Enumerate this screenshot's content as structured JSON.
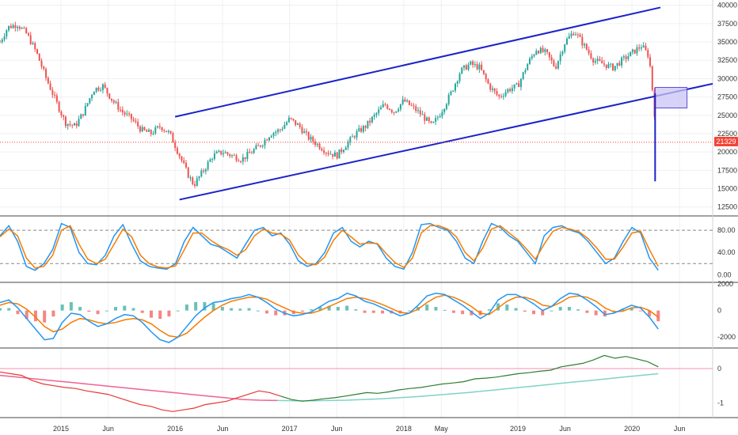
{
  "colors": {
    "up": "#26a69a",
    "down": "#ef5350",
    "channel": "#1b23c8",
    "stoch_k": "#2196f3",
    "stoch_d": "#f57c00",
    "macd": "#2196f3",
    "signal": "#f57c00",
    "hist_pos": "#26a69a",
    "hist_neg": "#ef5350",
    "ratio_up": "#2e7d32",
    "ratio_down": "#e53935",
    "ma_up": "#7fd3c3",
    "ma_down": "#f06292",
    "price_line": "#f44336",
    "price_badge": "#f44336",
    "box_fill": "#c9c4f5",
    "box_stroke": "#5c4ad3"
  },
  "current_price_label": "21329",
  "chart_data": [
    {
      "type": "candlestick",
      "panel": "price",
      "x_axis_labels": [
        "2015",
        "Jun",
        "2016",
        "Jun",
        "2017",
        "Jun",
        "2018",
        "May",
        "2019",
        "Jun",
        "2020",
        "Jun"
      ],
      "x_axis_dates": [
        "2015-01-01",
        "2015-06-01",
        "2016-01-01",
        "2016-06-01",
        "2017-01-01",
        "2017-06-01",
        "2018-01-01",
        "2018-05-01",
        "2019-01-01",
        "2019-06-01",
        "2020-01-01",
        "2020-06-01"
      ],
      "x_range": [
        "2014-06-20",
        "2020-09-15"
      ],
      "y_ticks": [
        "40000",
        "37500",
        "35000",
        "32500",
        "30000",
        "27500",
        "25000",
        "22500",
        "20000",
        "17500",
        "15000",
        "12500"
      ],
      "y_range": [
        11500,
        40500
      ],
      "current_price": 21329,
      "closes_approx": [
        [
          "2014-06-20",
          35000
        ],
        [
          "2014-07-15",
          37000
        ],
        [
          "2014-08-15",
          37400
        ],
        [
          "2014-09-15",
          36000
        ],
        [
          "2014-10-15",
          33500
        ],
        [
          "2014-11-15",
          30000
        ],
        [
          "2014-12-15",
          27000
        ],
        [
          "2015-01-15",
          24000
        ],
        [
          "2015-02-15",
          23500
        ],
        [
          "2015-03-15",
          25500
        ],
        [
          "2015-04-15",
          28500
        ],
        [
          "2015-05-15",
          29000
        ],
        [
          "2015-06-15",
          27000
        ],
        [
          "2015-07-15",
          25500
        ],
        [
          "2015-08-15",
          24500
        ],
        [
          "2015-09-15",
          23000
        ],
        [
          "2015-10-15",
          22500
        ],
        [
          "2015-11-15",
          23500
        ],
        [
          "2015-12-15",
          22500
        ],
        [
          "2016-01-10",
          20000
        ],
        [
          "2016-02-10",
          17000
        ],
        [
          "2016-03-01",
          15500
        ],
        [
          "2016-04-01",
          17500
        ],
        [
          "2016-05-01",
          19500
        ],
        [
          "2016-06-01",
          20000
        ],
        [
          "2016-07-01",
          19500
        ],
        [
          "2016-08-01",
          19000
        ],
        [
          "2016-09-01",
          20000
        ],
        [
          "2016-10-01",
          21000
        ],
        [
          "2016-11-01",
          22500
        ],
        [
          "2016-12-01",
          23000
        ],
        [
          "2017-01-01",
          24500
        ],
        [
          "2017-02-01",
          23500
        ],
        [
          "2017-03-01",
          22000
        ],
        [
          "2017-04-01",
          21000
        ],
        [
          "2017-05-01",
          20000
        ],
        [
          "2017-06-01",
          19500
        ],
        [
          "2017-07-01",
          21000
        ],
        [
          "2017-08-01",
          22500
        ],
        [
          "2017-09-01",
          23500
        ],
        [
          "2017-10-01",
          25000
        ],
        [
          "2017-11-01",
          26500
        ],
        [
          "2017-12-01",
          25500
        ],
        [
          "2018-01-01",
          27000
        ],
        [
          "2018-02-01",
          26000
        ],
        [
          "2018-03-01",
          25000
        ],
        [
          "2018-04-01",
          23500
        ],
        [
          "2018-05-01",
          25500
        ],
        [
          "2018-06-01",
          28000
        ],
        [
          "2018-07-01",
          31000
        ],
        [
          "2018-08-01",
          32000
        ],
        [
          "2018-09-01",
          31500
        ],
        [
          "2018-10-01",
          29000
        ],
        [
          "2018-11-01",
          27500
        ],
        [
          "2018-12-01",
          28500
        ],
        [
          "2019-01-01",
          29000
        ],
        [
          "2019-02-01",
          32000
        ],
        [
          "2019-03-01",
          34000
        ],
        [
          "2019-04-01",
          33500
        ],
        [
          "2019-05-01",
          31500
        ],
        [
          "2019-06-01",
          35000
        ],
        [
          "2019-07-01",
          36500
        ],
        [
          "2019-08-01",
          34500
        ],
        [
          "2019-09-01",
          32500
        ],
        [
          "2019-10-01",
          32000
        ],
        [
          "2019-11-01",
          31500
        ],
        [
          "2019-12-01",
          32500
        ],
        [
          "2020-01-01",
          33500
        ],
        [
          "2020-02-01",
          34500
        ],
        [
          "2020-02-25",
          33000
        ],
        [
          "2020-03-05",
          29000
        ],
        [
          "2020-03-12",
          26000
        ],
        [
          "2020-03-18",
          21329
        ]
      ],
      "annotations": {
        "channel_upper": [
          [
            "2016-01-01",
            24800
          ],
          [
            "2020-04-01",
            39700
          ]
        ],
        "channel_lower": [
          [
            "2016-01-15",
            13500
          ],
          [
            "2020-09-15",
            29300
          ]
        ],
        "vertical_line": {
          "date": "2020-03-15",
          "from": 28000,
          "to": 16000
        },
        "box": {
          "from_date": "2020-03-15",
          "to_date": "2020-06-25",
          "top": 28800,
          "bottom": 26000
        }
      }
    },
    {
      "type": "line",
      "panel": "stochastic",
      "y_ticks": [
        "80.00",
        "40.00",
        "0.00"
      ],
      "y_range": [
        -8,
        100
      ],
      "levels": [
        80,
        20
      ],
      "series": [
        {
          "key": "k",
          "values": [
            70,
            88,
            60,
            15,
            8,
            20,
            45,
            92,
            85,
            40,
            20,
            18,
            35,
            70,
            90,
            55,
            25,
            15,
            12,
            10,
            20,
            60,
            85,
            70,
            55,
            50,
            40,
            30,
            55,
            80,
            85,
            70,
            75,
            55,
            25,
            15,
            20,
            40,
            75,
            85,
            60,
            50,
            60,
            55,
            30,
            15,
            10,
            40,
            90,
            92,
            85,
            80,
            60,
            30,
            20,
            60,
            92,
            85,
            70,
            60,
            40,
            20,
            70,
            85,
            88,
            80,
            75,
            60,
            40,
            20,
            30,
            60,
            85,
            75,
            30,
            8
          ]
        },
        {
          "key": "d",
          "values": [
            68,
            82,
            70,
            30,
            12,
            15,
            35,
            80,
            88,
            55,
            28,
            20,
            28,
            55,
            82,
            68,
            35,
            20,
            14,
            12,
            16,
            45,
            75,
            75,
            62,
            52,
            45,
            35,
            45,
            70,
            82,
            75,
            73,
            62,
            35,
            20,
            18,
            32,
            62,
            80,
            68,
            55,
            57,
            56,
            38,
            22,
            13,
            30,
            75,
            88,
            88,
            82,
            68,
            40,
            25,
            48,
            82,
            88,
            75,
            63,
            46,
            28,
            55,
            78,
            85,
            82,
            77,
            65,
            48,
            28,
            28,
            50,
            75,
            78,
            45,
            15
          ]
        }
      ]
    },
    {
      "type": "line",
      "panel": "macd",
      "y_ticks": [
        "2000",
        "0",
        "-2000"
      ],
      "y_range": [
        -2700,
        2000
      ],
      "series": [
        {
          "key": "macd",
          "values": [
            600,
            800,
            200,
            -600,
            -1400,
            -2200,
            -2100,
            -900,
            -200,
            -300,
            -800,
            -1200,
            -1000,
            -600,
            -300,
            -400,
            -900,
            -1600,
            -2200,
            -2400,
            -2000,
            -1200,
            -400,
            200,
            600,
            700,
            900,
            1000,
            1200,
            1000,
            600,
            100,
            -200,
            -400,
            -300,
            -100,
            300,
            700,
            900,
            1300,
            1100,
            700,
            500,
            200,
            -100,
            -400,
            -200,
            400,
            1100,
            1300,
            1200,
            800,
            400,
            -100,
            -600,
            -200,
            800,
            1200,
            1200,
            900,
            500,
            0,
            300,
            900,
            1300,
            1200,
            800,
            300,
            -300,
            -200,
            100,
            400,
            200,
            -500,
            -1400
          ]
        },
        {
          "key": "signal",
          "values": [
            400,
            600,
            500,
            100,
            -500,
            -1200,
            -1600,
            -1400,
            -900,
            -600,
            -700,
            -900,
            -1000,
            -900,
            -700,
            -600,
            -700,
            -1000,
            -1500,
            -1900,
            -2000,
            -1700,
            -1100,
            -500,
            0,
            400,
            700,
            850,
            1000,
            1000,
            850,
            500,
            200,
            -100,
            -200,
            -200,
            0,
            300,
            600,
            900,
            1000,
            900,
            700,
            450,
            150,
            -150,
            -200,
            100,
            600,
            1000,
            1150,
            1000,
            700,
            300,
            -200,
            -300,
            200,
            700,
            1000,
            1000,
            800,
            400,
            300,
            600,
            1000,
            1100,
            1000,
            700,
            200,
            -100,
            -50,
            200,
            250,
            0,
            -500
          ]
        }
      ]
    },
    {
      "type": "line",
      "panel": "ratio",
      "y_ticks": [
        "0",
        "-1"
      ],
      "y_range": [
        -1.38,
        0.55
      ],
      "baseline": 0,
      "series": [
        {
          "key": "ratio",
          "values": [
            -0.1,
            -0.15,
            -0.2,
            -0.35,
            -0.45,
            -0.5,
            -0.55,
            -0.58,
            -0.65,
            -0.7,
            -0.75,
            -0.85,
            -0.95,
            -1.05,
            -1.1,
            -1.2,
            -1.25,
            -1.2,
            -1.15,
            -1.05,
            -1.0,
            -0.95,
            -0.85,
            -0.75,
            -0.65,
            -0.7,
            -0.8,
            -0.9,
            -0.95,
            -0.92,
            -0.88,
            -0.85,
            -0.8,
            -0.75,
            -0.7,
            -0.72,
            -0.68,
            -0.62,
            -0.58,
            -0.55,
            -0.5,
            -0.45,
            -0.42,
            -0.38,
            -0.3,
            -0.28,
            -0.25,
            -0.2,
            -0.15,
            -0.12,
            -0.08,
            -0.05,
            0.05,
            0.1,
            0.15,
            0.25,
            0.38,
            0.3,
            0.35,
            0.28,
            0.2,
            0.05
          ]
        },
        {
          "key": "ma",
          "values": [
            -0.2,
            -0.25,
            -0.3,
            -0.35,
            -0.4,
            -0.45,
            -0.5,
            -0.55,
            -0.6,
            -0.65,
            -0.7,
            -0.75,
            -0.8,
            -0.85,
            -0.9,
            -0.92,
            -0.93,
            -0.94,
            -0.94,
            -0.93,
            -0.92,
            -0.9,
            -0.88,
            -0.85,
            -0.82,
            -0.78,
            -0.74,
            -0.7,
            -0.65,
            -0.6,
            -0.55,
            -0.5,
            -0.45,
            -0.4,
            -0.35,
            -0.3,
            -0.25,
            -0.2,
            -0.15
          ]
        }
      ]
    }
  ]
}
